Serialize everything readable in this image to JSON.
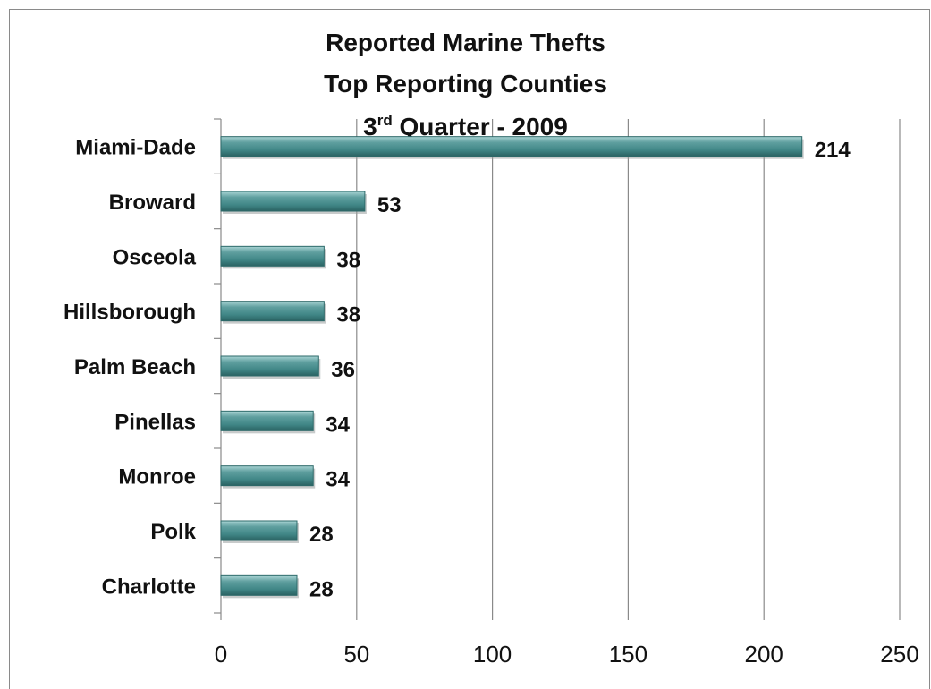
{
  "chart_data": {
    "type": "bar",
    "orientation": "horizontal",
    "title_lines": [
      "Reported Marine Thefts",
      "Top Reporting Counties"
    ],
    "title_line3": {
      "prefix": "3",
      "superscript": "rd",
      "suffix": " Quarter - 2009"
    },
    "categories": [
      "Miami-Dade",
      "Broward",
      "Osceola",
      "Hillsborough",
      "Palm Beach",
      "Pinellas",
      "Monroe",
      "Polk",
      "Charlotte"
    ],
    "values": [
      214,
      53,
      38,
      38,
      36,
      34,
      34,
      28,
      28
    ],
    "data_labels": [
      "214",
      "53",
      "38",
      "38",
      "36",
      "34",
      "34",
      "28",
      "28"
    ],
    "xlim": [
      0,
      250
    ],
    "x_ticks": [
      0,
      50,
      100,
      150,
      200,
      250
    ],
    "x_tick_labels": [
      "0",
      "50",
      "100",
      "150",
      "200",
      "250"
    ],
    "grid": "vertical",
    "legend": "none",
    "bar_color": "#3f8585",
    "bar_highlight_color": "#8fc4c4",
    "gridline_color": "#8a8a8a",
    "xlabel": "",
    "ylabel": ""
  }
}
